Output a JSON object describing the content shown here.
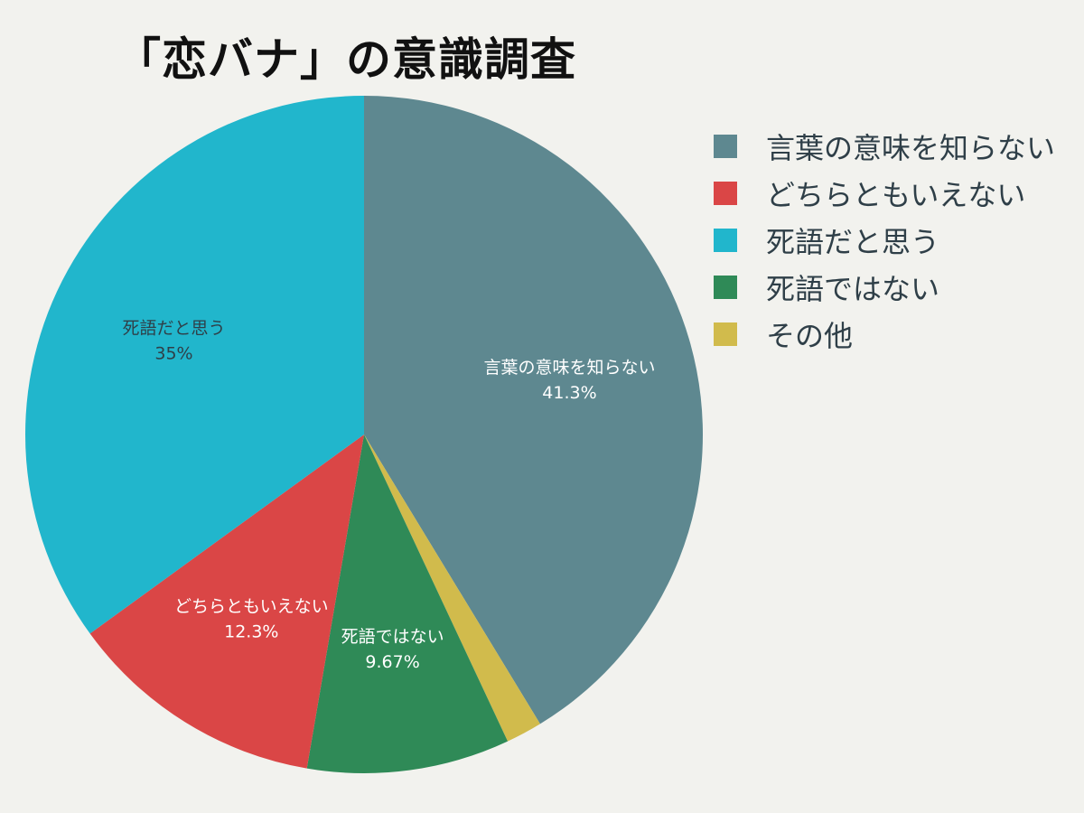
{
  "title": "「恋バナ」の意識調査",
  "chart_data": {
    "type": "pie",
    "title": "「恋バナ」の意識調査",
    "legend_position": "right",
    "start_angle_deg": 0,
    "direction": "clockwise",
    "slices": [
      {
        "label": "言葉の意味を知らない",
        "value": 41.3,
        "value_label": "41.3%",
        "color": "#5e8890",
        "label_color": "#ffffff"
      },
      {
        "label": "その他",
        "value": 1.73,
        "value_label": "",
        "color": "#d1bb4c",
        "label_color": "#ffffff"
      },
      {
        "label": "死語ではない",
        "value": 9.67,
        "value_label": "9.67%",
        "color": "#2f8a57",
        "label_color": "#ffffff"
      },
      {
        "label": "どちらともいえない",
        "value": 12.3,
        "value_label": "12.3%",
        "color": "#da4646",
        "label_color": "#ffffff"
      },
      {
        "label": "死語だと思う",
        "value": 35,
        "value_label": "35%",
        "color": "#21b6cc",
        "label_color": "#2f3f48"
      }
    ],
    "legend": [
      {
        "label": "言葉の意味を知らない",
        "color": "#5e8890"
      },
      {
        "label": "どちらともいえない",
        "color": "#da4646"
      },
      {
        "label": "死語だと思う",
        "color": "#21b6cc"
      },
      {
        "label": "死語ではない",
        "color": "#2f8a57"
      },
      {
        "label": "その他",
        "color": "#d1bb4c"
      }
    ]
  }
}
